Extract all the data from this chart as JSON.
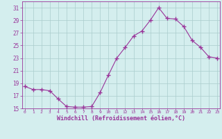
{
  "x": [
    0,
    1,
    2,
    3,
    4,
    5,
    6,
    7,
    8,
    9,
    10,
    11,
    12,
    13,
    14,
    15,
    16,
    17,
    18,
    19,
    20,
    21,
    22,
    23
  ],
  "y": [
    18.5,
    18.0,
    18.0,
    17.8,
    16.5,
    15.3,
    15.2,
    15.2,
    15.3,
    17.5,
    20.3,
    23.0,
    24.7,
    26.5,
    27.3,
    29.0,
    31.0,
    29.3,
    29.2,
    28.0,
    25.8,
    24.7,
    23.2,
    23.0
  ],
  "line_color": "#993399",
  "marker": "+",
  "marker_size": 4,
  "bg_color": "#d4eeee",
  "grid_color": "#aacccc",
  "tick_color": "#993399",
  "label_color": "#993399",
  "xlabel": "Windchill (Refroidissement éolien,°C)",
  "ylim": [
    15,
    32
  ],
  "yticks": [
    15,
    17,
    19,
    21,
    23,
    25,
    27,
    29,
    31
  ],
  "xticks": [
    0,
    1,
    2,
    3,
    4,
    5,
    6,
    7,
    8,
    9,
    10,
    11,
    12,
    13,
    14,
    15,
    16,
    17,
    18,
    19,
    20,
    21,
    22,
    23
  ],
  "xlim": [
    -0.3,
    23.3
  ]
}
